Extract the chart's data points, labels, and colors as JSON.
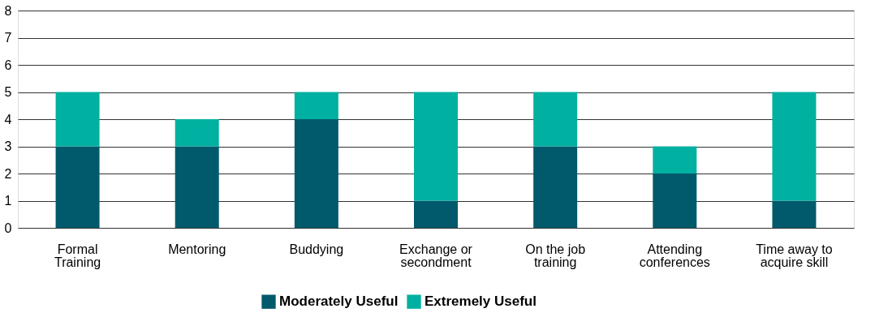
{
  "chart_data": {
    "type": "bar",
    "stacked": true,
    "categories": [
      "Formal Training",
      "Mentoring",
      "Buddying",
      "Exchange or secondment",
      "On the job training",
      "Attending conferences",
      "Time away to acquire skill"
    ],
    "series": [
      {
        "name": "Moderately Useful",
        "color": "#005a6b",
        "values": [
          3,
          3,
          4,
          1,
          3,
          2,
          1
        ]
      },
      {
        "name": "Extremely Useful",
        "color": "#00b0a0",
        "values": [
          2,
          1,
          1,
          4,
          2,
          1,
          4
        ]
      }
    ],
    "ylim": [
      0,
      8
    ],
    "yticks": [
      0,
      1,
      2,
      3,
      4,
      5,
      6,
      7,
      8
    ],
    "grid": "y",
    "legend": "bottom"
  }
}
